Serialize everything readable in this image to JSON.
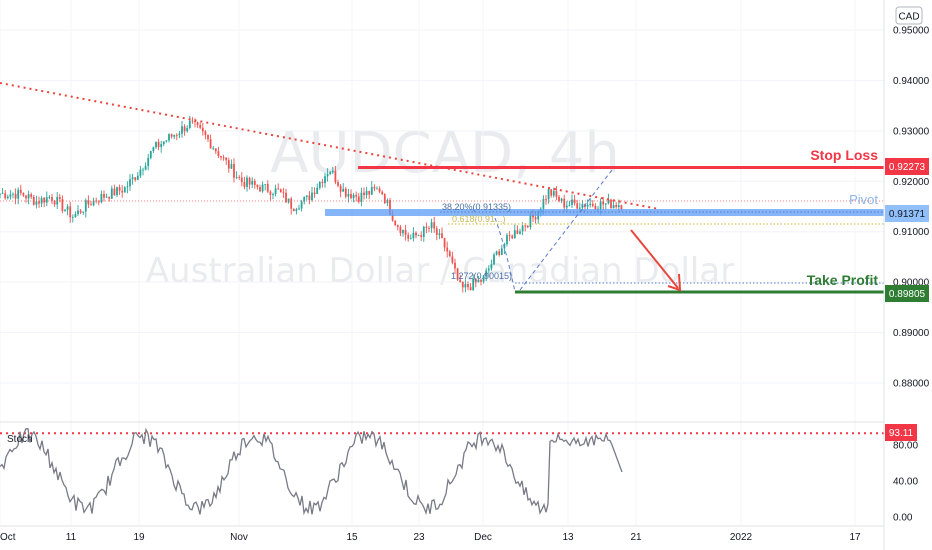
{
  "chart_data": {
    "type": "candlestick",
    "symbol": "AUDCAD, 4h",
    "symbol_description": "Australian Dollar / Canadian Dollar",
    "currency_badge": "CAD",
    "price_axis": {
      "ticks": [
        "0.95000",
        "0.94000",
        "0.93000",
        "0.92000",
        "0.91000",
        "0.90000",
        "0.89000",
        "0.88000"
      ],
      "range": [
        0.8735,
        0.9525
      ]
    },
    "time_axis": {
      "ticks": [
        "Oct",
        "11",
        "19",
        "Nov",
        "15",
        "23",
        "Dec",
        "13",
        "21",
        "2022",
        "17"
      ]
    },
    "close_series": {
      "dates": [
        "Oct 4",
        "Oct 6",
        "Oct 8",
        "Oct 11",
        "Oct 13",
        "Oct 15",
        "Oct 18",
        "Oct 20",
        "Oct 22",
        "Oct 25",
        "Oct 27",
        "Oct 29",
        "Nov 1",
        "Nov 3",
        "Nov 5",
        "Nov 8",
        "Nov 10",
        "Nov 12",
        "Nov 15",
        "Nov 17",
        "Nov 19",
        "Nov 22",
        "Nov 24",
        "Nov 26",
        "Nov 29",
        "Dec 1",
        "Dec 3",
        "Dec 6",
        "Dec 8",
        "Dec 10",
        "Dec 13",
        "Dec 15",
        "Dec 17"
      ],
      "close": [
        0.9175,
        0.916,
        0.917,
        0.913,
        0.9155,
        0.917,
        0.9185,
        0.922,
        0.9265,
        0.9295,
        0.9315,
        0.929,
        0.9235,
        0.92,
        0.919,
        0.918,
        0.915,
        0.9165,
        0.9225,
        0.918,
        0.917,
        0.9185,
        0.912,
        0.9085,
        0.911,
        0.9065,
        0.8985,
        0.9005,
        0.906,
        0.9095,
        0.913,
        0.918,
        0.9155
      ]
    },
    "trendline": {
      "from": [
        "Oct 1",
        0.9395
      ],
      "to": [
        "Dec 30",
        0.9145
      ]
    },
    "levels": {
      "stop_loss": {
        "label": "Stop Loss",
        "value": "0.92273",
        "price": 0.92273,
        "color": "#f23645"
      },
      "pivot": {
        "label": "Pivot",
        "value": "0.91371",
        "price": 0.91371,
        "color": "#5b9cf6"
      },
      "take_profit": {
        "label": "Take Profit",
        "value": "0.89805",
        "price": 0.89805,
        "color": "#2e7d32"
      }
    },
    "fib_labels": {
      "retracement": "38.20%(0.91335)",
      "retracement_second": "0.618(0.91...)",
      "extension": "1.272(0.90015)"
    },
    "stochastic": {
      "name": "Stoch",
      "ticks": [
        "80.00",
        "40.00",
        "0.00"
      ],
      "range": [
        0,
        100
      ],
      "level_value": "93.11",
      "level": 93.11,
      "level_color": "#f23645"
    },
    "colors": {
      "up": "#26a69a",
      "down": "#ef5350",
      "stoch_line": "#787b86"
    }
  }
}
